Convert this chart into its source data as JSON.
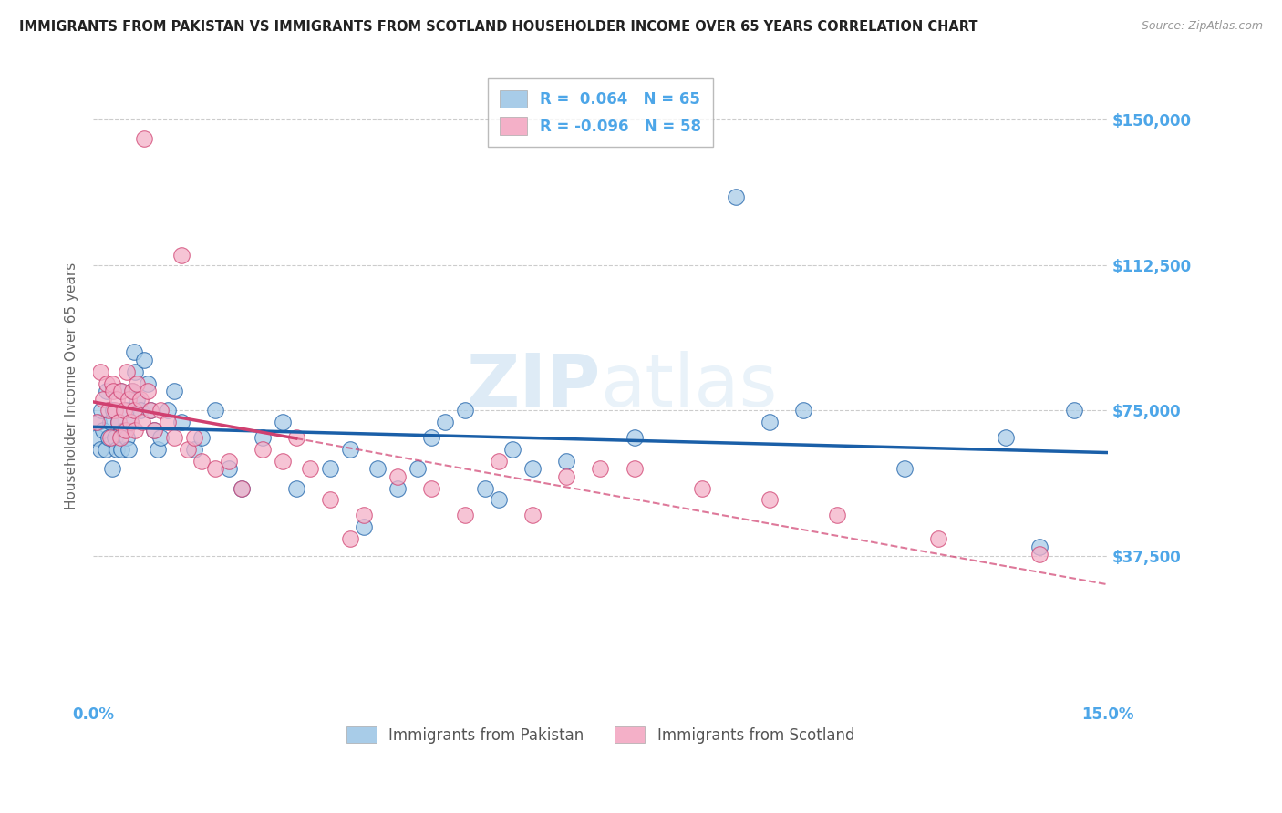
{
  "title": "IMMIGRANTS FROM PAKISTAN VS IMMIGRANTS FROM SCOTLAND HOUSEHOLDER INCOME OVER 65 YEARS CORRELATION CHART",
  "source": "Source: ZipAtlas.com",
  "ylabel": "Householder Income Over 65 years",
  "xlim": [
    0,
    15.0
  ],
  "ylim": [
    0,
    162500
  ],
  "xticks": [
    0.0,
    1.875,
    3.75,
    5.625,
    7.5,
    9.375,
    11.25,
    13.125,
    15.0
  ],
  "xtick_labels": [
    "0.0%",
    "",
    "",
    "",
    "",
    "",
    "",
    "",
    "15.0%"
  ],
  "ytick_positions": [
    0,
    37500,
    75000,
    112500,
    150000
  ],
  "ytick_labels": [
    "",
    "$37,500",
    "$75,000",
    "$112,500",
    "$150,000"
  ],
  "grid_color": "#cccccc",
  "background_color": "#ffffff",
  "pakistan_color": "#a8cce8",
  "scotland_color": "#f4b0c8",
  "pakistan_R": 0.064,
  "pakistan_N": 65,
  "scotland_R": -0.096,
  "scotland_N": 58,
  "pakistan_line_color": "#1a5fa8",
  "scotland_line_color": "#d04070",
  "axis_label_color": "#4da6e8",
  "pakistan_x": [
    0.05,
    0.08,
    0.1,
    0.12,
    0.15,
    0.18,
    0.2,
    0.22,
    0.25,
    0.28,
    0.3,
    0.32,
    0.35,
    0.38,
    0.4,
    0.42,
    0.45,
    0.48,
    0.5,
    0.52,
    0.55,
    0.58,
    0.6,
    0.62,
    0.65,
    0.7,
    0.75,
    0.8,
    0.85,
    0.9,
    0.95,
    1.0,
    1.1,
    1.2,
    1.3,
    1.5,
    1.6,
    1.8,
    2.0,
    2.2,
    2.5,
    2.8,
    3.0,
    3.5,
    3.8,
    4.0,
    4.2,
    4.5,
    4.8,
    5.0,
    5.2,
    5.5,
    5.8,
    6.0,
    6.2,
    6.5,
    7.0,
    8.0,
    9.5,
    10.0,
    10.5,
    12.0,
    13.5,
    14.0,
    14.5
  ],
  "pakistan_y": [
    68000,
    72000,
    65000,
    75000,
    70000,
    65000,
    80000,
    68000,
    72000,
    60000,
    75000,
    68000,
    65000,
    72000,
    80000,
    65000,
    70000,
    75000,
    68000,
    65000,
    72000,
    80000,
    90000,
    85000,
    78000,
    75000,
    88000,
    82000,
    75000,
    70000,
    65000,
    68000,
    75000,
    80000,
    72000,
    65000,
    68000,
    75000,
    60000,
    55000,
    68000,
    72000,
    55000,
    60000,
    65000,
    45000,
    60000,
    55000,
    60000,
    68000,
    72000,
    75000,
    55000,
    52000,
    65000,
    60000,
    62000,
    68000,
    130000,
    72000,
    75000,
    60000,
    68000,
    40000,
    75000
  ],
  "scotland_x": [
    0.05,
    0.1,
    0.15,
    0.2,
    0.22,
    0.25,
    0.28,
    0.3,
    0.32,
    0.35,
    0.38,
    0.4,
    0.42,
    0.45,
    0.48,
    0.5,
    0.52,
    0.55,
    0.58,
    0.6,
    0.62,
    0.65,
    0.7,
    0.72,
    0.75,
    0.8,
    0.85,
    0.9,
    1.0,
    1.1,
    1.2,
    1.3,
    1.4,
    1.5,
    1.6,
    1.8,
    2.0,
    2.2,
    2.5,
    2.8,
    3.0,
    3.2,
    3.5,
    3.8,
    4.0,
    4.5,
    5.0,
    5.5,
    6.0,
    6.5,
    7.0,
    7.5,
    8.0,
    9.0,
    10.0,
    11.0,
    12.5,
    14.0
  ],
  "scotland_y": [
    72000,
    85000,
    78000,
    82000,
    75000,
    68000,
    82000,
    80000,
    75000,
    78000,
    72000,
    68000,
    80000,
    75000,
    70000,
    85000,
    78000,
    72000,
    80000,
    75000,
    70000,
    82000,
    78000,
    72000,
    145000,
    80000,
    75000,
    70000,
    75000,
    72000,
    68000,
    115000,
    65000,
    68000,
    62000,
    60000,
    62000,
    55000,
    65000,
    62000,
    68000,
    60000,
    52000,
    42000,
    48000,
    58000,
    55000,
    48000,
    62000,
    48000,
    58000,
    60000,
    60000,
    55000,
    52000,
    48000,
    42000,
    38000
  ]
}
